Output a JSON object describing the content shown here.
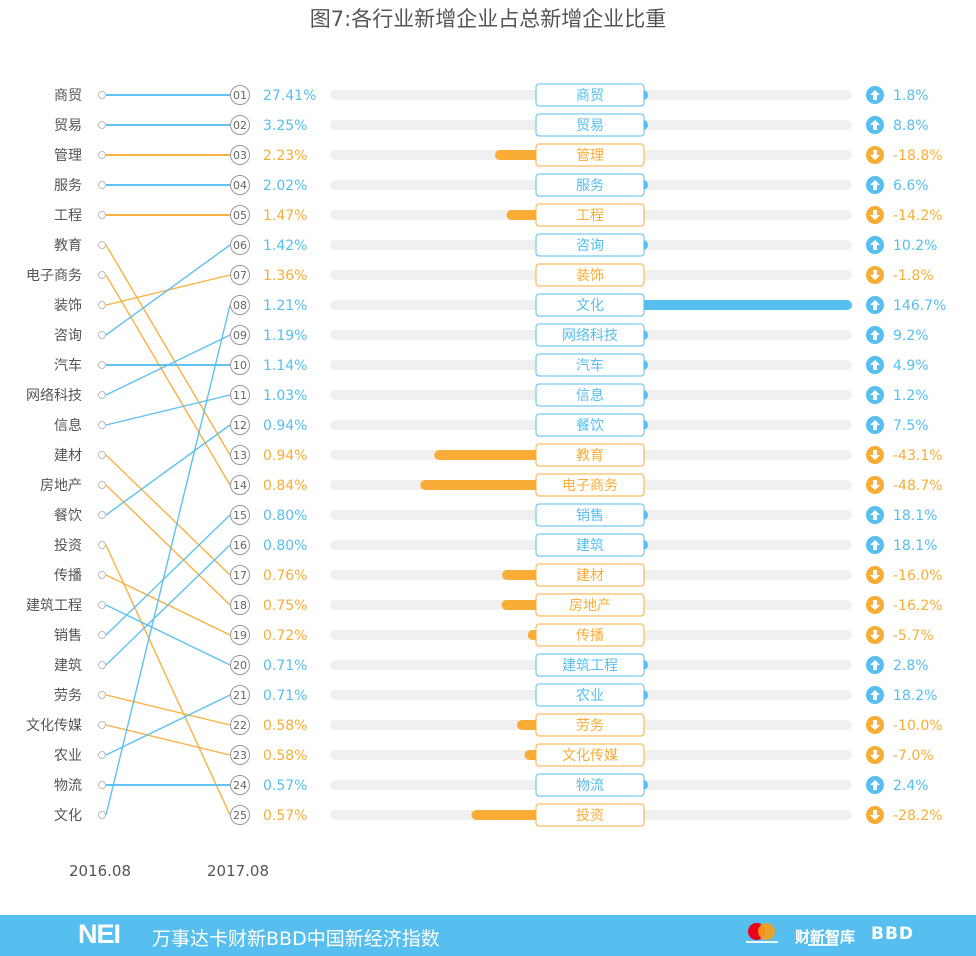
{
  "title": "图7:各行业新增企业占总新增企业比重",
  "footer": {
    "logo": "NEI",
    "title": "万事达卡财新BBD中国新经济指数",
    "partner_caixin": "财新智库",
    "partner_bbd": "BBD"
  },
  "colors": {
    "up": "#56bfef",
    "down": "#f9ad37",
    "track": "#f0f0f0",
    "label": "#555555"
  },
  "chart_data": {
    "type": "slope-and-bar",
    "left_axis_label": "2016.08",
    "right_axis_label": "2017.08",
    "rank_2016": [
      "商贸",
      "贸易",
      "管理",
      "服务",
      "工程",
      "教育",
      "电子商务",
      "装饰",
      "咨询",
      "汽车",
      "网络科技",
      "信息",
      "建材",
      "房地产",
      "餐饮",
      "投资",
      "传播",
      "建筑工程",
      "销售",
      "建筑",
      "劳务",
      "文化传媒",
      "农业",
      "物流",
      "文化"
    ],
    "rank_2017": [
      {
        "rank": "01",
        "industry": "商贸",
        "share": "27.41%",
        "change": "1.8%",
        "dir": "up",
        "value": 1.8
      },
      {
        "rank": "02",
        "industry": "贸易",
        "share": "3.25%",
        "change": "8.8%",
        "dir": "up",
        "value": 8.8
      },
      {
        "rank": "03",
        "industry": "管理",
        "share": "2.23%",
        "change": "-18.8%",
        "dir": "down",
        "value": -18.8
      },
      {
        "rank": "04",
        "industry": "服务",
        "share": "2.02%",
        "change": "6.6%",
        "dir": "up",
        "value": 6.6
      },
      {
        "rank": "05",
        "industry": "工程",
        "share": "1.47%",
        "change": "-14.2%",
        "dir": "down",
        "value": -14.2
      },
      {
        "rank": "06",
        "industry": "咨询",
        "share": "1.42%",
        "change": "10.2%",
        "dir": "up",
        "value": 10.2
      },
      {
        "rank": "07",
        "industry": "装饰",
        "share": "1.36%",
        "change": "-1.8%",
        "dir": "down",
        "value": -1.8
      },
      {
        "rank": "08",
        "industry": "文化",
        "share": "1.21%",
        "change": "146.7%",
        "dir": "up",
        "value": 146.7
      },
      {
        "rank": "09",
        "industry": "网络科技",
        "share": "1.19%",
        "change": "9.2%",
        "dir": "up",
        "value": 9.2
      },
      {
        "rank": "10",
        "industry": "汽车",
        "share": "1.14%",
        "change": "4.9%",
        "dir": "up",
        "value": 4.9
      },
      {
        "rank": "11",
        "industry": "信息",
        "share": "1.03%",
        "change": "1.2%",
        "dir": "up",
        "value": 1.2
      },
      {
        "rank": "12",
        "industry": "餐饮",
        "share": "0.94%",
        "change": "7.5%",
        "dir": "up",
        "value": 7.5
      },
      {
        "rank": "13",
        "industry": "教育",
        "share": "0.94%",
        "change": "-43.1%",
        "dir": "down",
        "value": -43.1
      },
      {
        "rank": "14",
        "industry": "电子商务",
        "share": "0.84%",
        "change": "-48.7%",
        "dir": "down",
        "value": -48.7
      },
      {
        "rank": "15",
        "industry": "销售",
        "share": "0.80%",
        "change": "18.1%",
        "dir": "up",
        "value": 18.1
      },
      {
        "rank": "16",
        "industry": "建筑",
        "share": "0.80%",
        "change": "18.1%",
        "dir": "up",
        "value": 18.1
      },
      {
        "rank": "17",
        "industry": "建材",
        "share": "0.76%",
        "change": "-16.0%",
        "dir": "down",
        "value": -16.0
      },
      {
        "rank": "18",
        "industry": "房地产",
        "share": "0.75%",
        "change": "-16.2%",
        "dir": "down",
        "value": -16.2
      },
      {
        "rank": "19",
        "industry": "传播",
        "share": "0.72%",
        "change": "-5.7%",
        "dir": "down",
        "value": -5.7
      },
      {
        "rank": "20",
        "industry": "建筑工程",
        "share": "0.71%",
        "change": "2.8%",
        "dir": "up",
        "value": 2.8
      },
      {
        "rank": "21",
        "industry": "农业",
        "share": "0.71%",
        "change": "18.2%",
        "dir": "up",
        "value": 18.2
      },
      {
        "rank": "22",
        "industry": "劳务",
        "share": "0.58%",
        "change": "-10.0%",
        "dir": "down",
        "value": -10.0
      },
      {
        "rank": "23",
        "industry": "文化传媒",
        "share": "0.58%",
        "change": "-7.0%",
        "dir": "down",
        "value": -7.0
      },
      {
        "rank": "24",
        "industry": "物流",
        "share": "0.57%",
        "change": "2.4%",
        "dir": "up",
        "value": 2.4
      },
      {
        "rank": "25",
        "industry": "投资",
        "share": "0.57%",
        "change": "-28.2%",
        "dir": "down",
        "value": -28.2
      }
    ],
    "bar_range": {
      "negative_max": 60,
      "positive_max": 150
    }
  }
}
